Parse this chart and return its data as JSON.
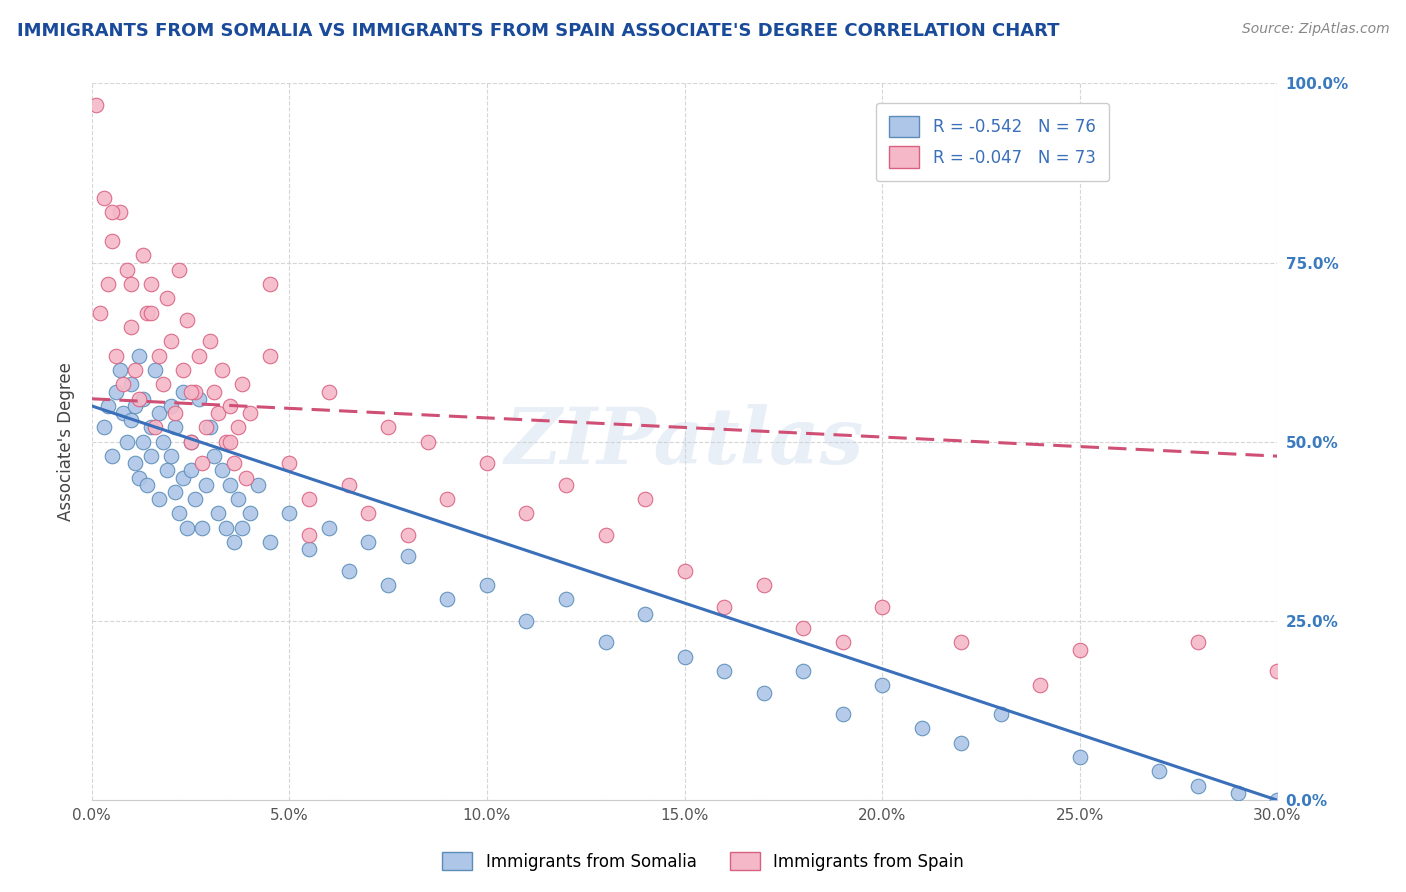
{
  "title": "IMMIGRANTS FROM SOMALIA VS IMMIGRANTS FROM SPAIN ASSOCIATE'S DEGREE CORRELATION CHART",
  "source_text": "Source: ZipAtlas.com",
  "ylabel": "Associate's Degree",
  "watermark": "ZIPatlas",
  "xlim": [
    0.0,
    30.0
  ],
  "ylim": [
    0.0,
    100.0
  ],
  "xticks": [
    0.0,
    5.0,
    10.0,
    15.0,
    20.0,
    25.0,
    30.0
  ],
  "yticks": [
    0.0,
    25.0,
    50.0,
    75.0,
    100.0
  ],
  "xtick_labels": [
    "0.0%",
    "5.0%",
    "10.0%",
    "15.0%",
    "20.0%",
    "25.0%",
    "30.0%"
  ],
  "ytick_labels": [
    "0.0%",
    "25.0%",
    "50.0%",
    "75.0%",
    "100.0%"
  ],
  "somalia_color": "#aec6e8",
  "somalia_edge": "#5b8db8",
  "somalia_line": "#3a6fba",
  "somalia_R": -0.542,
  "somalia_N": 76,
  "somalia_line_x": [
    0.0,
    30.0
  ],
  "somalia_line_y": [
    55.0,
    0.0
  ],
  "somalia_x": [
    0.3,
    0.5,
    0.6,
    0.7,
    0.8,
    0.9,
    1.0,
    1.0,
    1.1,
    1.1,
    1.2,
    1.2,
    1.3,
    1.3,
    1.4,
    1.5,
    1.5,
    1.6,
    1.7,
    1.7,
    1.8,
    1.9,
    2.0,
    2.0,
    2.1,
    2.1,
    2.2,
    2.3,
    2.3,
    2.4,
    2.5,
    2.5,
    2.6,
    2.7,
    2.8,
    2.9,
    3.0,
    3.1,
    3.2,
    3.3,
    3.4,
    3.5,
    3.6,
    3.7,
    3.8,
    4.0,
    4.2,
    4.5,
    5.0,
    5.5,
    6.0,
    6.5,
    7.0,
    7.5,
    8.0,
    9.0,
    10.0,
    11.0,
    12.0,
    13.0,
    14.0,
    15.0,
    16.0,
    17.0,
    18.0,
    19.0,
    20.0,
    21.0,
    22.0,
    23.0,
    25.0,
    27.0,
    28.0,
    29.0,
    30.0,
    0.4
  ],
  "somalia_y": [
    52,
    48,
    57,
    60,
    54,
    50,
    53,
    58,
    47,
    55,
    45,
    62,
    50,
    56,
    44,
    52,
    48,
    60,
    42,
    54,
    50,
    46,
    55,
    48,
    43,
    52,
    40,
    57,
    45,
    38,
    50,
    46,
    42,
    56,
    38,
    44,
    52,
    48,
    40,
    46,
    38,
    44,
    36,
    42,
    38,
    40,
    44,
    36,
    40,
    35,
    38,
    32,
    36,
    30,
    34,
    28,
    30,
    25,
    28,
    22,
    26,
    20,
    18,
    15,
    18,
    12,
    16,
    10,
    8,
    12,
    6,
    4,
    2,
    1,
    0,
    55
  ],
  "spain_color": "#f4b8c8",
  "spain_edge": "#d96080",
  "spain_line": "#d05075",
  "spain_R": -0.047,
  "spain_N": 73,
  "spain_line_x": [
    0.0,
    30.0
  ],
  "spain_line_y": [
    56.0,
    48.0
  ],
  "spain_x": [
    0.1,
    0.2,
    0.3,
    0.4,
    0.5,
    0.6,
    0.7,
    0.8,
    0.9,
    1.0,
    1.0,
    1.1,
    1.2,
    1.3,
    1.4,
    1.5,
    1.6,
    1.7,
    1.8,
    1.9,
    2.0,
    2.1,
    2.2,
    2.3,
    2.4,
    2.5,
    2.6,
    2.7,
    2.8,
    2.9,
    3.0,
    3.1,
    3.2,
    3.3,
    3.4,
    3.5,
    3.6,
    3.7,
    3.8,
    3.9,
    4.0,
    4.5,
    5.0,
    5.5,
    6.0,
    6.5,
    7.0,
    7.5,
    8.0,
    8.5,
    9.0,
    10.0,
    11.0,
    12.0,
    13.0,
    14.0,
    15.0,
    16.0,
    17.0,
    18.0,
    19.0,
    20.0,
    22.0,
    24.0,
    25.0,
    28.0,
    30.0,
    1.5,
    2.5,
    3.5,
    0.5,
    4.5,
    5.5
  ],
  "spain_y": [
    97,
    68,
    84,
    72,
    78,
    62,
    82,
    58,
    74,
    66,
    72,
    60,
    56,
    76,
    68,
    72,
    52,
    62,
    58,
    70,
    64,
    54,
    74,
    60,
    67,
    50,
    57,
    62,
    47,
    52,
    64,
    57,
    54,
    60,
    50,
    55,
    47,
    52,
    58,
    45,
    54,
    62,
    47,
    42,
    57,
    44,
    40,
    52,
    37,
    50,
    42,
    47,
    40,
    44,
    37,
    42,
    32,
    27,
    30,
    24,
    22,
    27,
    22,
    16,
    21,
    22,
    18,
    68,
    57,
    50,
    82,
    72,
    37
  ],
  "legend_somalia": "R = -0.542   N = 76",
  "legend_spain": "R = -0.047   N = 73",
  "title_color": "#1a4a9a",
  "ytick_color": "#3a7abf",
  "source_color": "#888888",
  "grid_color": "#cccccc",
  "background_color": "#ffffff"
}
